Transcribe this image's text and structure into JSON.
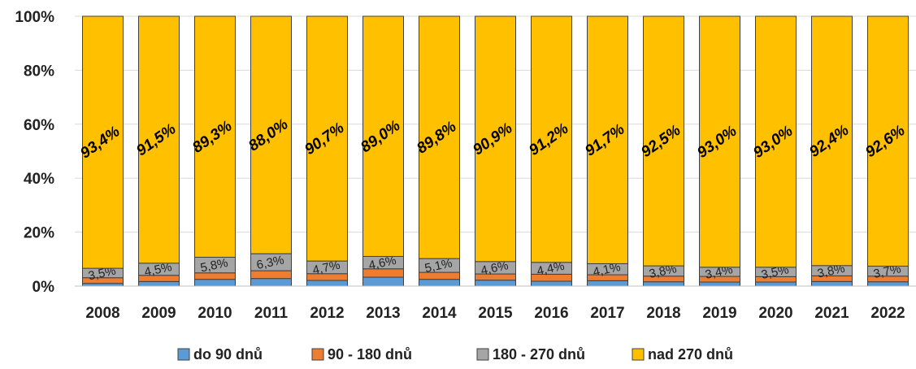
{
  "chart_data": {
    "type": "bar",
    "stacked": true,
    "percent": true,
    "title": "",
    "xlabel": "",
    "ylabel": "",
    "ylim": [
      0,
      100
    ],
    "yticks": [
      "0%",
      "20%",
      "40%",
      "60%",
      "80%",
      "100%"
    ],
    "grid": true,
    "legend_position": "bottom",
    "categories": [
      "2008",
      "2009",
      "2010",
      "2011",
      "2012",
      "2013",
      "2014",
      "2015",
      "2016",
      "2017",
      "2018",
      "2019",
      "2020",
      "2021",
      "2022"
    ],
    "series": [
      {
        "name": "do 90 dnů",
        "color": "#5B9BD5",
        "values": [
          1.0,
          1.7,
          2.5,
          2.8,
          2.1,
          3.3,
          2.5,
          2.2,
          1.8,
          2.0,
          1.6,
          1.5,
          1.5,
          1.7,
          1.6
        ],
        "labels": [
          "",
          "",
          "",
          "",
          "",
          "",
          "",
          "",
          "",
          "",
          "",
          "",
          "",
          "",
          ""
        ]
      },
      {
        "name": "90 - 180 dnů",
        "color": "#ED7D31",
        "values": [
          2.1,
          2.3,
          2.4,
          2.9,
          2.5,
          3.1,
          2.6,
          2.3,
          2.6,
          2.2,
          2.1,
          2.1,
          2.0,
          2.1,
          2.1
        ],
        "labels": [
          "",
          "",
          "",
          "",
          "",
          "",
          "",
          "",
          "",
          "",
          "",
          "",
          "",
          "",
          ""
        ]
      },
      {
        "name": "180 - 270 dnů",
        "color": "#A5A5A5",
        "values": [
          3.5,
          4.5,
          5.8,
          6.3,
          4.7,
          4.6,
          5.1,
          4.6,
          4.4,
          4.1,
          3.8,
          3.4,
          3.5,
          3.8,
          3.7
        ],
        "labels": [
          "3,5%",
          "4,5%",
          "5,8%",
          "6,3%",
          "4,7%",
          "4,6%",
          "5,1%",
          "4,6%",
          "4,4%",
          "4,1%",
          "3,8%",
          "3,4%",
          "3,5%",
          "3,8%",
          "3,7%"
        ]
      },
      {
        "name": "nad 270 dnů",
        "color": "#FFC000",
        "values": [
          93.4,
          91.5,
          89.3,
          88.0,
          90.7,
          89.0,
          89.8,
          90.9,
          91.2,
          91.7,
          92.5,
          93.0,
          93.0,
          92.4,
          92.6
        ],
        "labels": [
          "93,4%",
          "91,5%",
          "89,3%",
          "88,0%",
          "90,7%",
          "89,0%",
          "89,8%",
          "90,9%",
          "91,2%",
          "91,7%",
          "92,5%",
          "93,0%",
          "93,0%",
          "92,4%",
          "92,6%"
        ]
      }
    ]
  }
}
